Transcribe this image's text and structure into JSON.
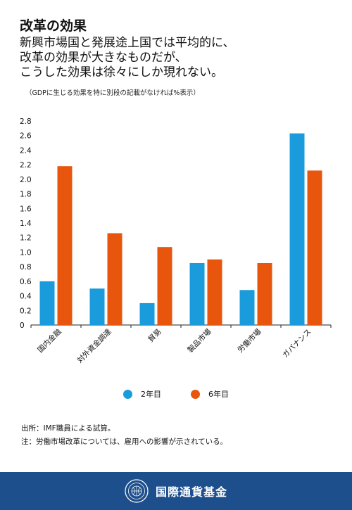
{
  "header": {
    "title": "改革の効果",
    "subtitle_lines": [
      "新興市場国と発展途上国では平均的に、",
      "改革の効果が大きなものだが、",
      "こうした効果は徐々にしか現れない。"
    ],
    "caption": "（GDPに生じる効果を特に別段の記載がなければ%表示）"
  },
  "colors": {
    "series_2y": "#1a9bdc",
    "series_6y": "#e8560e",
    "footer_bg": "#1d4f8c"
  },
  "chart_data": {
    "type": "bar",
    "categories": [
      "国内金融",
      "対外資金調達",
      "貿易",
      "製品市場",
      "労働市場",
      "ガバナンス"
    ],
    "series": [
      {
        "name": "2年目",
        "values": [
          0.6,
          0.5,
          0.3,
          0.85,
          0.48,
          2.63
        ]
      },
      {
        "name": "6年目",
        "values": [
          2.18,
          1.26,
          1.07,
          0.9,
          0.85,
          2.12
        ]
      }
    ],
    "yticks": [
      "0",
      "0.2",
      "0.4",
      "0.6",
      "0.8",
      "1.0",
      "1.2",
      "1.4",
      "1.6",
      "1.8",
      "2.0",
      "2.2",
      "2.4",
      "2.6",
      "2.8"
    ],
    "ylim": [
      0,
      2.8
    ],
    "grid": false,
    "legend": "bottom"
  },
  "legend": {
    "items": [
      {
        "label": "2年目",
        "icon": "blue-dot"
      },
      {
        "label": "6年目",
        "icon": "orange-dot"
      }
    ]
  },
  "notes": {
    "source": "出所：IMF職員による試算。",
    "note": "注：労働市場改革については、雇用への影響が示されている。"
  },
  "footer": {
    "org_name": "国際通貨基金",
    "seal_icon": "imf-seal-icon"
  }
}
